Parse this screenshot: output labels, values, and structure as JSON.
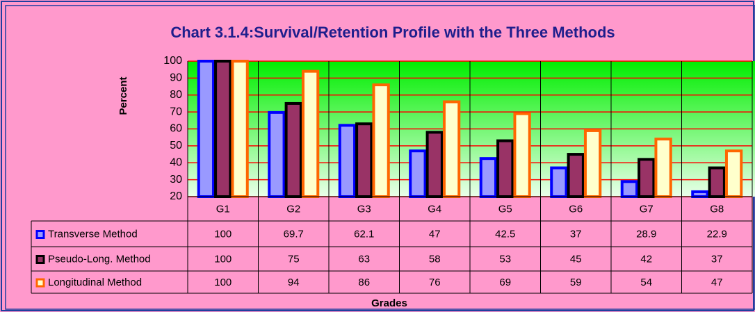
{
  "chart_data": {
    "type": "bar",
    "title": "Chart 3.1.4:Survival/Retention Profile with  the Three Methods",
    "y_label": "Percent",
    "x_label": "Grades",
    "categories": [
      "G1",
      "G2",
      "G3",
      "G4",
      "G5",
      "G6",
      "G7",
      "G8"
    ],
    "series": [
      {
        "name": "Transverse Method",
        "color": "#9999ff",
        "border_color": "#0000ff",
        "values": [
          100,
          69.7,
          62.1,
          47,
          42.5,
          37,
          28.9,
          22.9
        ]
      },
      {
        "name": "Pseudo-Long. Method",
        "color": "#993366",
        "border_color": "#000000",
        "values": [
          100,
          75,
          63,
          58,
          53,
          45,
          42,
          37
        ]
      },
      {
        "name": "Longitudinal Method",
        "color": "#ffffcc",
        "border_color": "#ff6600",
        "values": [
          100,
          94,
          86,
          76,
          69,
          59,
          54,
          47
        ]
      }
    ],
    "ylim": [
      20,
      100
    ],
    "yticks": [
      20,
      30,
      40,
      50,
      60,
      70,
      80,
      90,
      100
    ],
    "grid": true,
    "grid_color": "#ff0000"
  }
}
